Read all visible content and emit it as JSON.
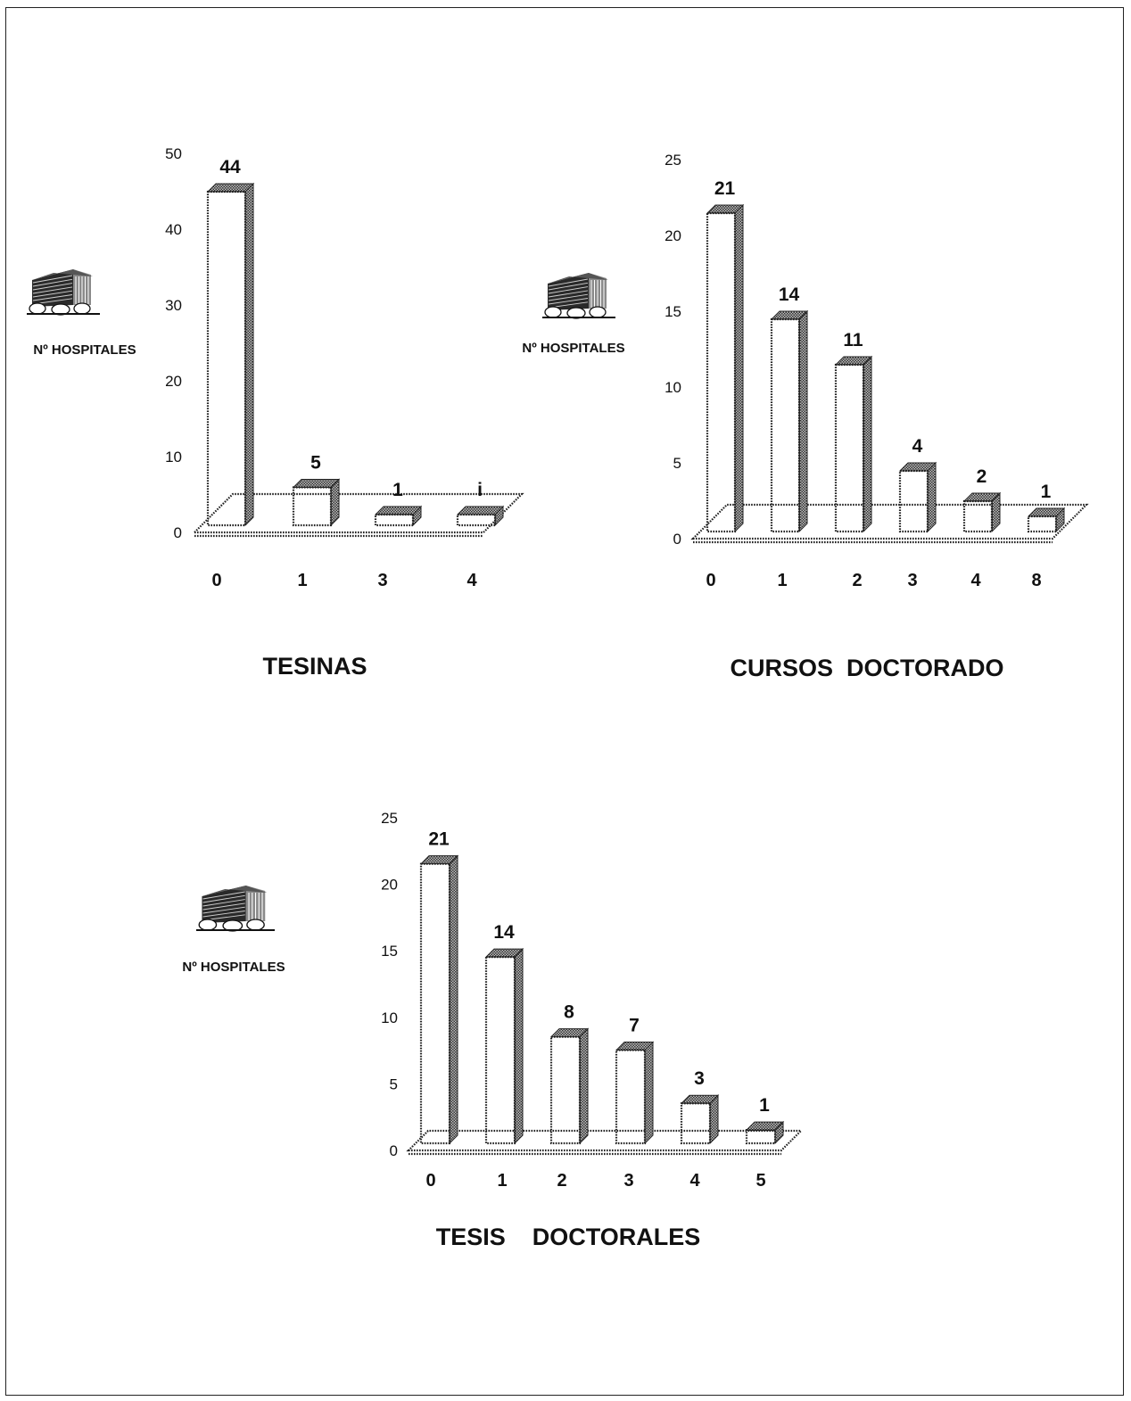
{
  "y_axis_label": "Nº HOSPITALES",
  "chart_data": [
    {
      "type": "bar",
      "title": "TESINAS",
      "ylabel": "Nº HOSPITALES",
      "xlabel": "",
      "categories": [
        "0",
        "1",
        "3",
        "4"
      ],
      "values": [
        44,
        5,
        1,
        1
      ],
      "data_labels": [
        "44",
        "5",
        "1",
        "i"
      ],
      "ylim": [
        0,
        50
      ],
      "yticks": [
        "0",
        "10",
        "20",
        "30",
        "40",
        "50"
      ]
    },
    {
      "type": "bar",
      "title": "CURSOS  DOCTORADO",
      "ylabel": "Nº HOSPITALES",
      "xlabel": "",
      "categories": [
        "0",
        "1",
        "2",
        "3",
        "4",
        "8"
      ],
      "values": [
        21,
        14,
        11,
        4,
        2,
        1
      ],
      "data_labels": [
        "21",
        "14",
        "11",
        "4",
        "2",
        "1"
      ],
      "ylim": [
        0,
        25
      ],
      "yticks": [
        "0",
        "5",
        "10",
        "15",
        "20",
        "25"
      ]
    },
    {
      "type": "bar",
      "title": "TESIS    DOCTORALES",
      "ylabel": "Nº HOSPITALES",
      "xlabel": "",
      "categories": [
        "0",
        "1",
        "2",
        "3",
        "4",
        "5"
      ],
      "values": [
        21,
        14,
        8,
        7,
        3,
        1
      ],
      "data_labels": [
        "21",
        "14",
        "8",
        "7",
        "3",
        "1"
      ],
      "ylim": [
        0,
        25
      ],
      "yticks": [
        "0",
        "5",
        "10",
        "15",
        "20",
        "25"
      ]
    }
  ]
}
